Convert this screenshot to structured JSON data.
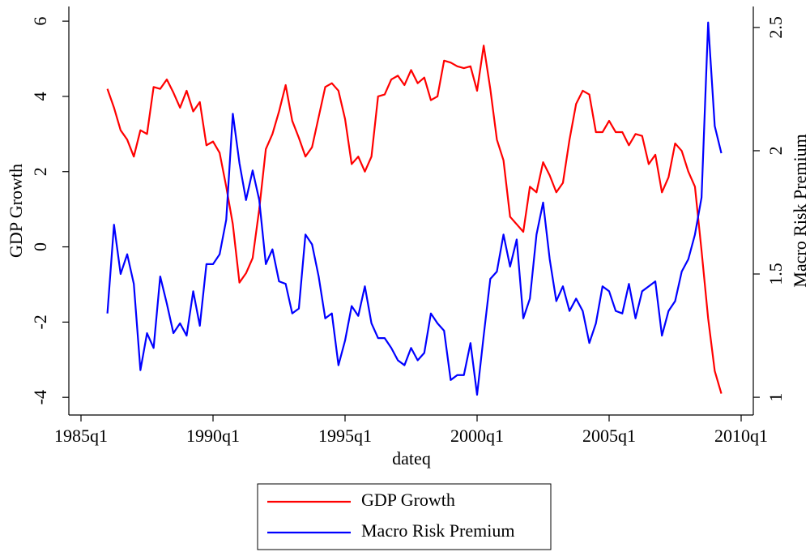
{
  "chart_data": {
    "type": "line",
    "x": [
      "1986q1",
      "1986q2",
      "1986q3",
      "1986q4",
      "1987q1",
      "1987q2",
      "1987q3",
      "1987q4",
      "1988q1",
      "1988q2",
      "1988q3",
      "1988q4",
      "1989q1",
      "1989q2",
      "1989q3",
      "1989q4",
      "1990q1",
      "1990q2",
      "1990q3",
      "1990q4",
      "1991q1",
      "1991q2",
      "1991q3",
      "1991q4",
      "1992q1",
      "1992q2",
      "1992q3",
      "1992q4",
      "1993q1",
      "1993q2",
      "1993q3",
      "1993q4",
      "1994q1",
      "1994q2",
      "1994q3",
      "1994q4",
      "1995q1",
      "1995q2",
      "1995q3",
      "1995q4",
      "1996q1",
      "1996q2",
      "1996q3",
      "1996q4",
      "1997q1",
      "1997q2",
      "1997q3",
      "1997q4",
      "1998q1",
      "1998q2",
      "1998q3",
      "1998q4",
      "1999q1",
      "1999q2",
      "1999q3",
      "1999q4",
      "2000q1",
      "2000q2",
      "2000q3",
      "2000q4",
      "2001q1",
      "2001q2",
      "2001q3",
      "2001q4",
      "2002q1",
      "2002q2",
      "2002q3",
      "2002q4",
      "2003q1",
      "2003q2",
      "2003q3",
      "2003q4",
      "2004q1",
      "2004q2",
      "2004q3",
      "2004q4",
      "2005q1",
      "2005q2",
      "2005q3",
      "2005q4",
      "2006q1",
      "2006q2",
      "2006q3",
      "2006q4",
      "2007q1",
      "2007q2",
      "2007q3",
      "2007q4",
      "2008q1",
      "2008q2",
      "2008q3",
      "2008q4",
      "2009q1",
      "2009q2"
    ],
    "series": [
      {
        "name": "GDP Growth",
        "color": "#ff0000",
        "axis": "y",
        "values": [
          4.2,
          3.7,
          3.1,
          2.85,
          2.4,
          3.1,
          3.0,
          4.25,
          4.2,
          4.45,
          4.1,
          3.7,
          4.15,
          3.6,
          3.85,
          2.7,
          2.8,
          2.5,
          1.6,
          0.6,
          -0.95,
          -0.7,
          -0.3,
          1.0,
          2.6,
          3.0,
          3.6,
          4.3,
          3.35,
          2.9,
          2.4,
          2.65,
          3.45,
          4.25,
          4.35,
          4.15,
          3.4,
          2.2,
          2.4,
          2.0,
          2.4,
          4.0,
          4.05,
          4.45,
          4.55,
          4.3,
          4.7,
          4.35,
          4.5,
          3.9,
          4.0,
          4.95,
          4.9,
          4.8,
          4.75,
          4.8,
          4.15,
          5.35,
          4.2,
          2.85,
          2.3,
          0.8,
          0.6,
          0.4,
          1.6,
          1.45,
          2.25,
          1.9,
          1.45,
          1.7,
          2.85,
          3.8,
          4.15,
          4.05,
          3.05,
          3.05,
          3.35,
          3.05,
          3.05,
          2.7,
          3.0,
          2.95,
          2.2,
          2.45,
          1.45,
          1.85,
          2.75,
          2.55,
          2.0,
          1.6,
          -0.1,
          -1.9,
          -3.3,
          -3.9
        ]
      },
      {
        "name": "Macro Risk Premium",
        "color": "#0000ff",
        "axis": "y2",
        "values": [
          1.34,
          1.7,
          1.5,
          1.58,
          1.46,
          1.11,
          1.26,
          1.2,
          1.49,
          1.38,
          1.26,
          1.3,
          1.25,
          1.43,
          1.29,
          1.54,
          1.54,
          1.58,
          1.72,
          2.15,
          1.95,
          1.8,
          1.92,
          1.8,
          1.54,
          1.6,
          1.47,
          1.46,
          1.34,
          1.36,
          1.66,
          1.62,
          1.49,
          1.32,
          1.34,
          1.13,
          1.23,
          1.37,
          1.33,
          1.45,
          1.3,
          1.24,
          1.24,
          1.2,
          1.15,
          1.13,
          1.2,
          1.15,
          1.18,
          1.34,
          1.3,
          1.27,
          1.07,
          1.09,
          1.09,
          1.22,
          1.01,
          1.25,
          1.48,
          1.51,
          1.66,
          1.53,
          1.64,
          1.32,
          1.4,
          1.66,
          1.79,
          1.56,
          1.39,
          1.45,
          1.35,
          1.4,
          1.35,
          1.22,
          1.3,
          1.45,
          1.43,
          1.35,
          1.34,
          1.46,
          1.32,
          1.43,
          1.45,
          1.47,
          1.25,
          1.35,
          1.39,
          1.51,
          1.56,
          1.66,
          1.81,
          2.52,
          2.1,
          1.99
        ]
      }
    ],
    "xlabel": "dateq",
    "ylabel": "GDP Growth",
    "y2label": "Macro Risk Premium",
    "xlim": [
      "1985q1",
      "2010q1"
    ],
    "xticks": [
      "1985q1",
      "1990q1",
      "1995q1",
      "2000q1",
      "2005q1",
      "2010q1"
    ],
    "ylim": [
      -4.47,
      6.39
    ],
    "yticks": [
      -4,
      -2,
      0,
      2,
      4,
      6
    ],
    "y2lim": [
      0.928,
      2.585
    ],
    "y2ticks": [
      1,
      1.5,
      2,
      2.5
    ],
    "legend": "bottom"
  }
}
